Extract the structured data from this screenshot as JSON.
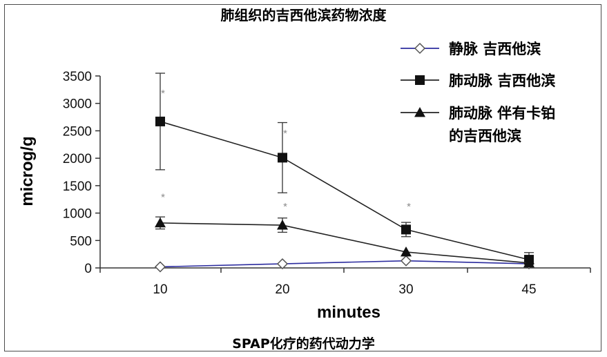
{
  "chart_data": {
    "type": "line",
    "title": "肺组织的吉西他滨药物浓度",
    "caption": "SPAP化疗的药代动力学",
    "xlabel": "minutes",
    "ylabel": "microg/g",
    "categories": [
      "10",
      "20",
      "30",
      "45"
    ],
    "ylim": [
      0,
      3500
    ],
    "yticks": [
      0,
      500,
      1000,
      1500,
      2000,
      2500,
      3000,
      3500
    ],
    "legend_position": "top-right",
    "grid": false,
    "series": [
      {
        "name": "静脉 吉西他滨",
        "legend_lines": [
          "静脉 吉西他滨"
        ],
        "marker": "diamond-open",
        "color": "#2b2b9e",
        "values": [
          20,
          75,
          130,
          75
        ],
        "err": [
          0,
          0,
          0,
          0
        ]
      },
      {
        "name": "肺动脉 吉西他滨",
        "legend_lines": [
          "肺动脉 吉西他滨"
        ],
        "marker": "square",
        "color": "#222222",
        "values": [
          2670,
          2010,
          700,
          150
        ],
        "err": [
          880,
          640,
          130,
          130
        ]
      },
      {
        "name": "肺动脉 伴有卡铂的吉西他滨",
        "legend_lines": [
          "肺动脉 伴有卡铂",
          "的吉西他滨"
        ],
        "marker": "triangle",
        "color": "#222222",
        "values": [
          820,
          780,
          290,
          90
        ],
        "err": [
          110,
          130,
          0,
          0
        ]
      }
    ],
    "annotations": [
      {
        "text": "*",
        "x": "10",
        "y": 3200
      },
      {
        "text": "*",
        "x": "10",
        "y": 1300
      },
      {
        "text": "*",
        "x": "20",
        "y": 2470
      },
      {
        "text": "*",
        "x": "20",
        "y": 1130
      },
      {
        "text": "*",
        "x": "30",
        "y": 1130
      }
    ]
  }
}
